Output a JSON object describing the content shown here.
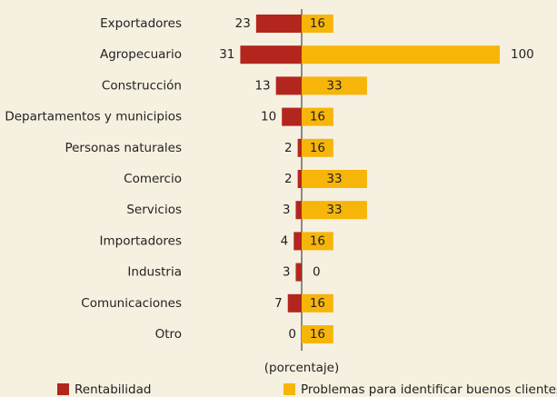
{
  "chart_data": {
    "type": "diverging-bar",
    "categories": [
      "Exportadores",
      "Agropecuario",
      "Construcción",
      "Departamentos y municipios",
      "Personas naturales",
      "Comercio",
      "Servicios",
      "Importadores",
      "Industria",
      "Comunicaciones",
      "Otro"
    ],
    "series": [
      {
        "name": "Rentabilidad",
        "color": "#b3261e",
        "values": [
          23,
          31,
          13,
          10,
          2,
          2,
          3,
          4,
          3,
          7,
          0
        ]
      },
      {
        "name": "Problemas para identificar buenos clientes",
        "color": "#f7b50a",
        "values": [
          16,
          100,
          33,
          16,
          16,
          33,
          33,
          16,
          0,
          16,
          16
        ]
      }
    ],
    "xlabel": "(porcentaje)"
  }
}
